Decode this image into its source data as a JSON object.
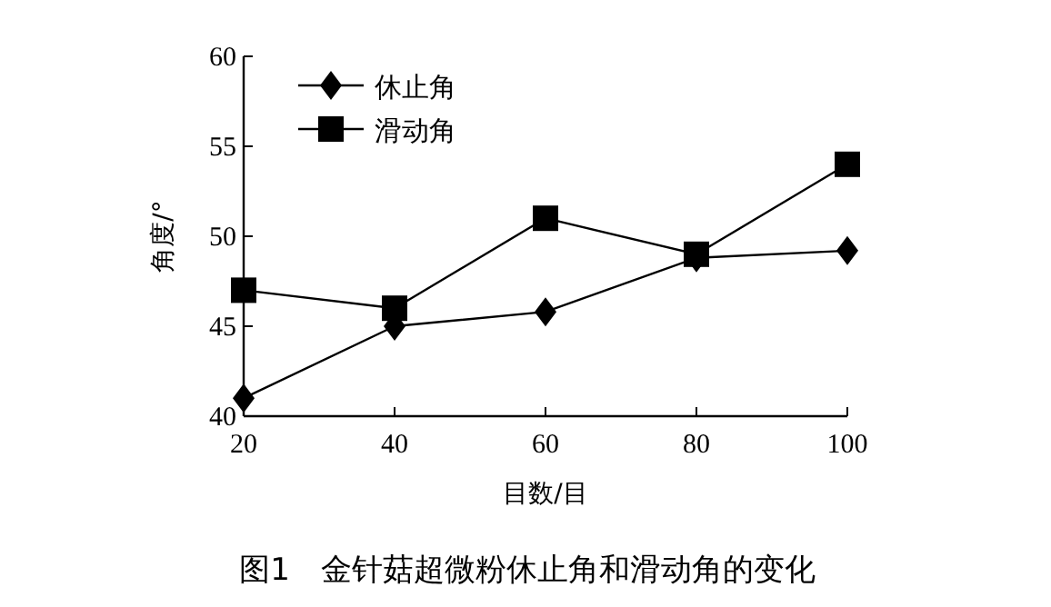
{
  "chart_data": {
    "type": "line",
    "title": "图1　金针菇超微粉休止角和滑动角的变化",
    "xlabel": "目数/目",
    "ylabel": "角度/°",
    "x": [
      20,
      40,
      60,
      80,
      100
    ],
    "series": [
      {
        "name": "休止角",
        "color": "#000000",
        "marker": "diamond",
        "values": [
          41,
          45,
          45.8,
          48.8,
          49.2
        ]
      },
      {
        "name": "滑动角",
        "color": "#000000",
        "marker": "square",
        "values": [
          47,
          46,
          51,
          49,
          54
        ]
      }
    ],
    "xlim": [
      20,
      100
    ],
    "xticks": [
      20,
      40,
      60,
      80,
      100
    ],
    "ylim": [
      40,
      60
    ],
    "yticks": [
      40,
      45,
      50,
      55,
      60
    ],
    "grid": false,
    "legend": "top left",
    "line_style": "solid"
  }
}
